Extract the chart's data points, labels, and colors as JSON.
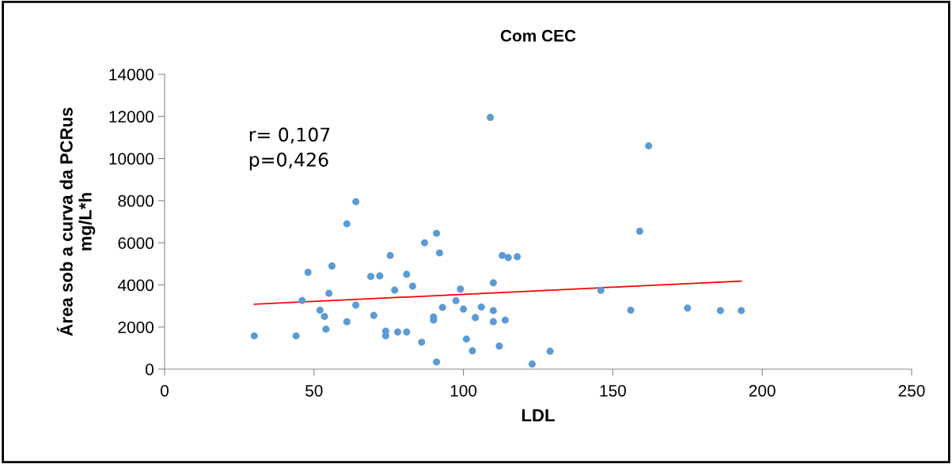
{
  "chart_data": {
    "type": "scatter",
    "title": "Com CEC",
    "xlabel": "LDL",
    "ylabel": "Área sob a curva da PCRus\nmg/L*h",
    "annotations": [
      "r= 0,107",
      "p=0,426"
    ],
    "series": [
      {
        "color": "#5b9bd5",
        "marker": "circle",
        "x": [
          30,
          44,
          46,
          48,
          52,
          53.5,
          54,
          55,
          56,
          61,
          61,
          64,
          64,
          69,
          70,
          72,
          74,
          74,
          75.5,
          77,
          78,
          81,
          81,
          83,
          86,
          87,
          90,
          90,
          91,
          91,
          92,
          93,
          97.5,
          99,
          100,
          101,
          103,
          104,
          106,
          109,
          110,
          110,
          110,
          112,
          113,
          114,
          115,
          118,
          123,
          129,
          146,
          156,
          159,
          162,
          175,
          186,
          193
        ],
        "values": [
          1580,
          1580,
          3260,
          4600,
          2800,
          2500,
          1900,
          3600,
          4900,
          2250,
          6900,
          3040,
          7950,
          4400,
          2550,
          4430,
          1800,
          1580,
          5400,
          3750,
          1760,
          4500,
          1760,
          3940,
          1280,
          6000,
          2330,
          2480,
          6450,
          340,
          5520,
          2930,
          3250,
          3800,
          2850,
          1430,
          870,
          2450,
          2950,
          11950,
          4100,
          2780,
          2250,
          1100,
          5400,
          2330,
          5300,
          5340,
          240,
          850,
          3740,
          2800,
          6550,
          10600,
          2900,
          2780,
          2780
        ]
      },
      {
        "type": "line",
        "color": "#ff0000",
        "x": [
          30,
          193
        ],
        "values": [
          3080,
          4180
        ]
      }
    ],
    "xlim": [
      0,
      250
    ],
    "xticks": [
      0,
      50,
      100,
      150,
      200,
      250
    ],
    "ylim": [
      0,
      14000
    ],
    "yticks": [
      0,
      2000,
      4000,
      6000,
      8000,
      10000,
      12000,
      14000
    ],
    "grid": false
  }
}
